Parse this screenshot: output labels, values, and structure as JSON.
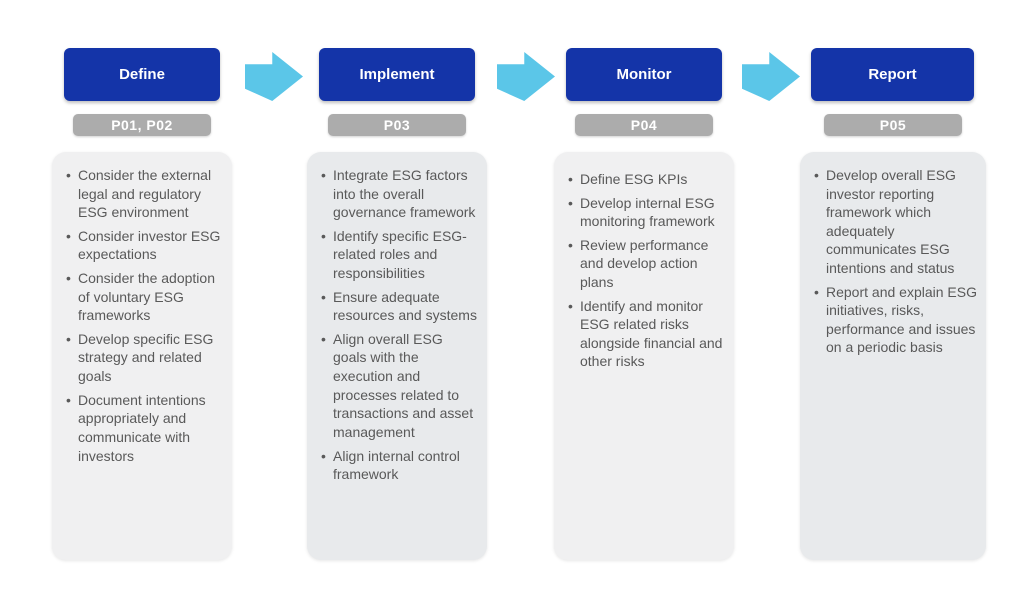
{
  "colors": {
    "header_blue": "#1434a8",
    "arrow_blue": "#5bc6e8",
    "badge_gray": "#acacac",
    "card_gray_light": "#f0f0f1",
    "card_gray_dark": "#e8eaec",
    "body_text_gray": "#595959"
  },
  "stages": [
    {
      "title": "Define",
      "badge": "P01, P02",
      "bullets": [
        "Consider the external legal and regulatory ESG environment",
        "Consider investor ESG expectations",
        "Consider the adoption of voluntary ESG frameworks",
        "Develop specific ESG strategy and related goals",
        "Document intentions appropriately and communicate with investors"
      ]
    },
    {
      "title": "Implement",
      "badge": "P03",
      "bullets": [
        "Integrate ESG factors into the overall governance framework",
        "Identify specific ESG-related roles and responsibilities",
        "Ensure adequate resources and systems",
        "Align overall ESG goals with the execution and processes related to transactions and asset management",
        "Align internal control framework"
      ]
    },
    {
      "title": "Monitor",
      "badge": "P04",
      "bullets": [
        "Define ESG KPIs",
        "Develop internal ESG monitoring framework",
        "Review performance and develop action plans",
        "Identify and monitor ESG related risks alongside financial and other risks"
      ]
    },
    {
      "title": "Report",
      "badge": "P05",
      "bullets": [
        "Develop overall ESG investor reporting framework which adequately communicates ESG intentions and status",
        "Report and explain ESG initiatives, risks, performance and issues on a periodic basis"
      ]
    }
  ]
}
